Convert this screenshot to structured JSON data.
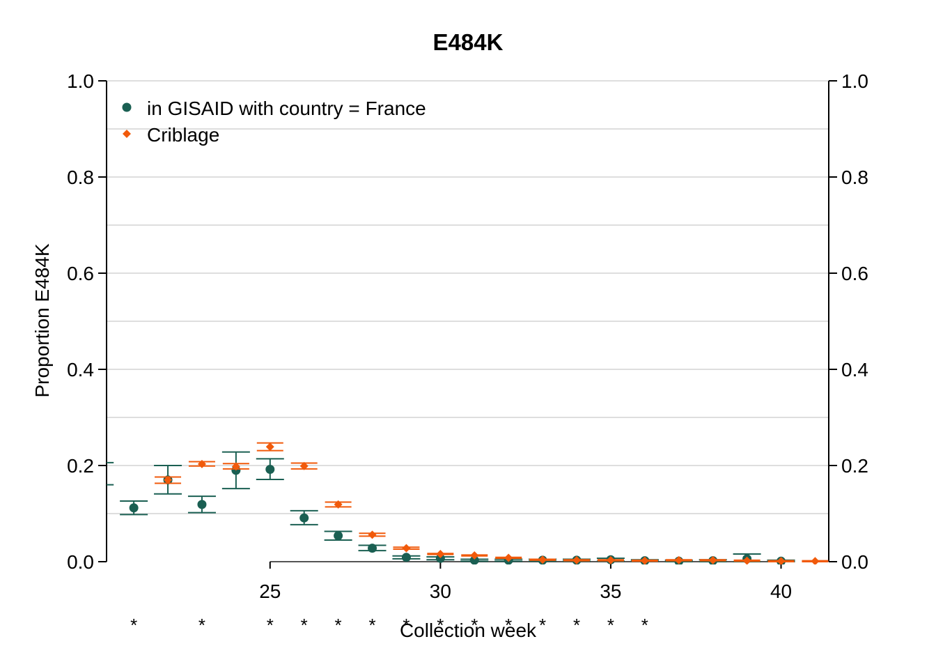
{
  "chart_data": {
    "type": "scatter",
    "title": "E484K",
    "xlabel": "Collection week",
    "ylabel": "Proportion E484K",
    "xlim": [
      20.2,
      41.4
    ],
    "ylim": [
      0,
      1
    ],
    "x_ticks": [
      25,
      30,
      35,
      40
    ],
    "y_ticks": [
      0.0,
      0.2,
      0.4,
      0.6,
      0.8,
      1.0
    ],
    "y_tick_labels": [
      "0.0",
      "0.2",
      "0.4",
      "0.6",
      "0.8",
      "1.0"
    ],
    "grid": true,
    "legend_position": "top-left",
    "series": [
      {
        "name": "in GISAID with country = France",
        "marker": "circle",
        "color": "#1a5f52",
        "points": [
          {
            "x": 20,
            "y": 0.183,
            "lo": 0.16,
            "hi": 0.206
          },
          {
            "x": 21,
            "y": 0.112,
            "lo": 0.098,
            "hi": 0.126
          },
          {
            "x": 22,
            "y": 0.17,
            "lo": 0.141,
            "hi": 0.2
          },
          {
            "x": 23,
            "y": 0.119,
            "lo": 0.102,
            "hi": 0.136
          },
          {
            "x": 24,
            "y": 0.19,
            "lo": 0.152,
            "hi": 0.228
          },
          {
            "x": 25,
            "y": 0.192,
            "lo": 0.171,
            "hi": 0.214
          },
          {
            "x": 26,
            "y": 0.091,
            "lo": 0.077,
            "hi": 0.106
          },
          {
            "x": 27,
            "y": 0.054,
            "lo": 0.045,
            "hi": 0.063
          },
          {
            "x": 28,
            "y": 0.028,
            "lo": 0.023,
            "hi": 0.034
          },
          {
            "x": 29,
            "y": 0.009,
            "lo": 0.006,
            "hi": 0.012
          },
          {
            "x": 30,
            "y": 0.007,
            "lo": 0.004,
            "hi": 0.01
          },
          {
            "x": 31,
            "y": 0.003,
            "lo": 0.001,
            "hi": 0.005
          },
          {
            "x": 32,
            "y": 0.003,
            "lo": 0.001,
            "hi": 0.005
          },
          {
            "x": 33,
            "y": 0.003,
            "lo": 0.001,
            "hi": 0.005
          },
          {
            "x": 34,
            "y": 0.003,
            "lo": 0.001,
            "hi": 0.005
          },
          {
            "x": 35,
            "y": 0.004,
            "lo": 0.001,
            "hi": 0.007
          },
          {
            "x": 36,
            "y": 0.002,
            "lo": 0.001,
            "hi": 0.004
          },
          {
            "x": 37,
            "y": 0.001,
            "lo": 0.0,
            "hi": 0.003
          },
          {
            "x": 38,
            "y": 0.002,
            "lo": 0.0,
            "hi": 0.004
          },
          {
            "x": 39,
            "y": 0.006,
            "lo": 0.0,
            "hi": 0.016
          },
          {
            "x": 40,
            "y": 0.001,
            "lo": 0.0,
            "hi": 0.003
          }
        ]
      },
      {
        "name": "Criblage",
        "marker": "diamond",
        "color": "#f15a0b",
        "points": [
          {
            "x": 22,
            "y": 0.17,
            "lo": 0.163,
            "hi": 0.176
          },
          {
            "x": 23,
            "y": 0.203,
            "lo": 0.199,
            "hi": 0.208
          },
          {
            "x": 24,
            "y": 0.198,
            "lo": 0.193,
            "hi": 0.204
          },
          {
            "x": 25,
            "y": 0.239,
            "lo": 0.231,
            "hi": 0.247
          },
          {
            "x": 26,
            "y": 0.199,
            "lo": 0.193,
            "hi": 0.205
          },
          {
            "x": 27,
            "y": 0.119,
            "lo": 0.114,
            "hi": 0.124
          },
          {
            "x": 28,
            "y": 0.056,
            "lo": 0.053,
            "hi": 0.059
          },
          {
            "x": 29,
            "y": 0.028,
            "lo": 0.026,
            "hi": 0.03
          },
          {
            "x": 30,
            "y": 0.016,
            "lo": 0.015,
            "hi": 0.017
          },
          {
            "x": 31,
            "y": 0.013,
            "lo": 0.012,
            "hi": 0.014
          },
          {
            "x": 32,
            "y": 0.008,
            "lo": 0.007,
            "hi": 0.009
          },
          {
            "x": 33,
            "y": 0.004,
            "lo": 0.003,
            "hi": 0.005
          },
          {
            "x": 34,
            "y": 0.003,
            "lo": 0.002,
            "hi": 0.004
          },
          {
            "x": 35,
            "y": 0.003,
            "lo": 0.002,
            "hi": 0.004
          },
          {
            "x": 36,
            "y": 0.002,
            "lo": 0.001,
            "hi": 0.003
          },
          {
            "x": 37,
            "y": 0.003,
            "lo": 0.002,
            "hi": 0.004
          },
          {
            "x": 38,
            "y": 0.003,
            "lo": 0.002,
            "hi": 0.004
          },
          {
            "x": 39,
            "y": 0.002,
            "lo": 0.001,
            "hi": 0.003
          },
          {
            "x": 40,
            "y": 0.001,
            "lo": 0.0,
            "hi": 0.002
          },
          {
            "x": 41,
            "y": 0.001,
            "lo": 0.0,
            "hi": 0.002
          }
        ]
      }
    ],
    "significance": {
      "symbol": "*",
      "weeks": [
        21,
        23,
        25,
        26,
        27,
        28,
        29,
        30,
        31,
        32,
        33,
        34,
        35,
        36
      ]
    }
  }
}
